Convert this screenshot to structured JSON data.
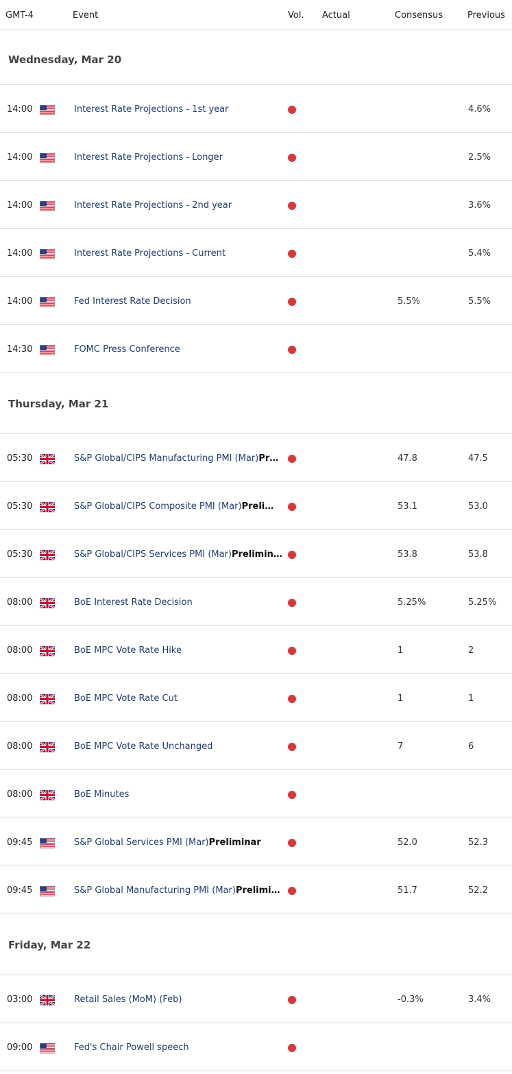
{
  "header": {
    "columns": [
      "GMT-4",
      "Event",
      "Vol.",
      "Actual",
      "Consensus",
      "Previous"
    ]
  },
  "days": [
    {
      "title": "Wednesday, Mar 20",
      "events": [
        {
          "time": "14:00",
          "flag": "us",
          "event": "Interest Rate Projections - 1st year",
          "previous": "4.6%"
        },
        {
          "time": "14:00",
          "flag": "us",
          "event": "Interest Rate Projections - Longer",
          "previous": "2.5%"
        },
        {
          "time": "14:00",
          "flag": "us",
          "event": "Interest Rate Projections - 2nd year",
          "previous": "3.6%"
        },
        {
          "time": "14:00",
          "flag": "us",
          "event": "Interest Rate Projections - Current",
          "previous": "5.4%"
        },
        {
          "time": "14:00",
          "flag": "us",
          "event": "Fed Interest Rate Decision",
          "consensus": "5.5%",
          "previous": "5.5%"
        },
        {
          "time": "14:30",
          "flag": "us",
          "event": "FOMC Press Conference"
        }
      ]
    },
    {
      "title": "Thursday, Mar 21",
      "events": [
        {
          "time": "05:30",
          "flag": "uk",
          "event": "S&P Global/CIPS Manufacturing PMI (Mar)",
          "event_bold": "Pr…",
          "consensus": "47.8",
          "previous": "47.5"
        },
        {
          "time": "05:30",
          "flag": "uk",
          "event": "S&P Global/CIPS Composite PMI (Mar)",
          "event_bold": "Preli…",
          "consensus": "53.1",
          "previous": "53.0"
        },
        {
          "time": "05:30",
          "flag": "uk",
          "event": "S&P Global/CIPS Services PMI (Mar)",
          "event_bold": "Prelimin…",
          "consensus": "53.8",
          "previous": "53.8"
        },
        {
          "time": "08:00",
          "flag": "uk",
          "event": "BoE Interest Rate Decision",
          "consensus": "5.25%",
          "previous": "5.25%"
        },
        {
          "time": "08:00",
          "flag": "uk",
          "event": "BoE MPC Vote Rate Hike",
          "consensus": "1",
          "previous": "2"
        },
        {
          "time": "08:00",
          "flag": "uk",
          "event": "BoE MPC Vote Rate Cut",
          "consensus": "1",
          "previous": "1"
        },
        {
          "time": "08:00",
          "flag": "uk",
          "event": "BoE MPC Vote Rate Unchanged",
          "consensus": "7",
          "previous": "6"
        },
        {
          "time": "08:00",
          "flag": "uk",
          "event": "BoE Minutes"
        },
        {
          "time": "09:45",
          "flag": "us",
          "event": "S&P Global Services PMI (Mar)",
          "event_bold": "Preliminar",
          "consensus": "52.0",
          "previous": "52.3"
        },
        {
          "time": "09:45",
          "flag": "us",
          "event": "S&P Global Manufacturing PMI (Mar)",
          "event_bold": "Prelimi…",
          "consensus": "51.7",
          "previous": "52.2"
        }
      ]
    },
    {
      "title": "Friday, Mar 22",
      "events": [
        {
          "time": "03:00",
          "flag": "uk",
          "event": "Retail Sales (MoM) (Feb)",
          "consensus": "-0.3%",
          "previous": "3.4%"
        },
        {
          "time": "09:00",
          "flag": "us",
          "event": "Fed's Chair Powell speech"
        }
      ]
    }
  ]
}
